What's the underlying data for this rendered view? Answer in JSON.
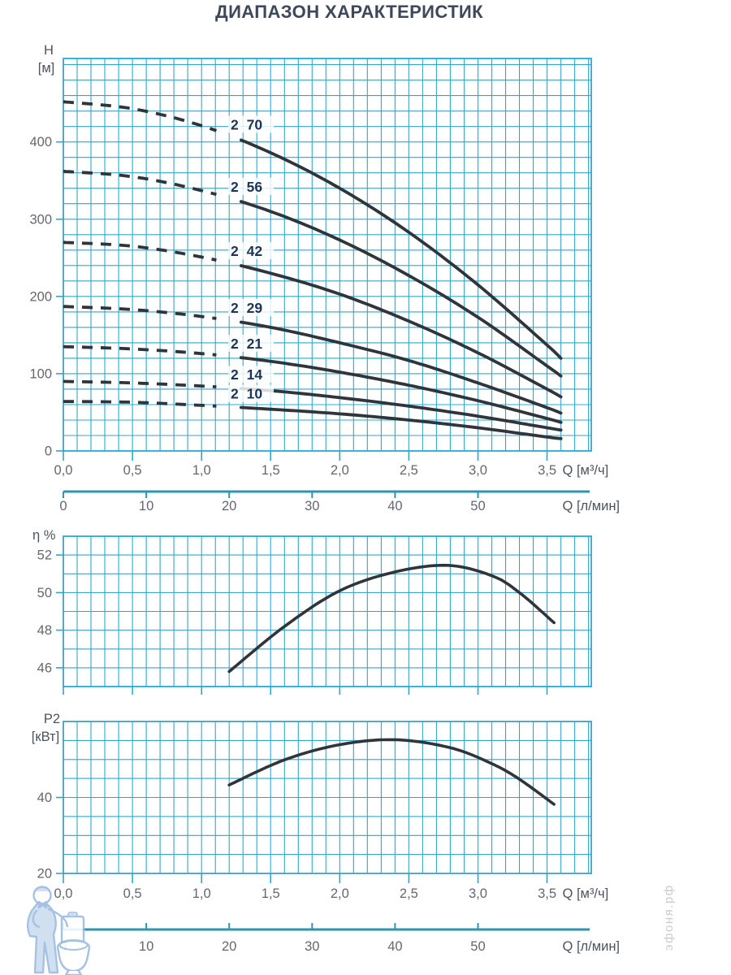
{
  "title": "ДИАПАЗОН ХАРАКТЕРИСТИК",
  "watermark": {
    "site": "эфоня.рф",
    "figure": "plumber-leaning-on-toilet"
  },
  "colors": {
    "grid": "#31a5c8",
    "axis_line": "#2e96b2",
    "curve": "#2f353a",
    "curve_label": "#1c3555",
    "tick_text": "#64676b",
    "unit_text": "#4c545c",
    "title_text": "#3d4859",
    "watermark_text": "#c6c6c6",
    "watermark_figure_stroke": "#9cbcdf",
    "watermark_figure_fill": "#cdddf0"
  },
  "chart_data": [
    {
      "type": "line",
      "name": "head-flow-chart",
      "ylabel": "H",
      "ylabel_unit": "[м]",
      "xlabel": "Q [м³/ч]",
      "xlabel_secondary": "Q [л/мин]",
      "xlim": [
        0,
        3.82
      ],
      "ylim": [
        0,
        508
      ],
      "grid": true,
      "grid_minor_x": 0.1,
      "grid_minor_y": 20,
      "x_tick_labels": [
        "0,0",
        "0,5",
        "1,0",
        "1,5",
        "2,0",
        "2,5",
        "3,0",
        "3,5"
      ],
      "x_tick_values": [
        0,
        0.5,
        1,
        1.5,
        2,
        2.5,
        3,
        3.5
      ],
      "y_tick_values": [
        0,
        100,
        200,
        300,
        400
      ],
      "x2_tick_labels": [
        "0",
        "10",
        "20",
        "30",
        "40",
        "50"
      ],
      "x2_tick_values": [
        0,
        10,
        20,
        30,
        40,
        50
      ],
      "litres_per_min_per_m3h": 16.667,
      "dashed_flow_end": 1.13,
      "solid_flow_start": 1.27,
      "series": [
        {
          "name": "2 70",
          "points": [
            [
              0,
              452
            ],
            [
              0.5,
              443
            ],
            [
              1,
              421
            ],
            [
              1.5,
              386
            ],
            [
              2,
              340
            ],
            [
              2.5,
              283
            ],
            [
              3,
              215
            ],
            [
              3.5,
              137
            ],
            [
              3.6,
              120
            ]
          ]
        },
        {
          "name": "2 56",
          "points": [
            [
              0,
              362
            ],
            [
              0.5,
              355
            ],
            [
              1,
              337
            ],
            [
              1.5,
              310
            ],
            [
              2,
              273
            ],
            [
              2.5,
              227
            ],
            [
              3,
              173
            ],
            [
              3.5,
              110
            ],
            [
              3.6,
              97
            ]
          ]
        },
        {
          "name": "2 42",
          "points": [
            [
              0,
              270
            ],
            [
              0.5,
              265
            ],
            [
              1,
              251
            ],
            [
              1.5,
              230
            ],
            [
              2,
              203
            ],
            [
              2.5,
              168
            ],
            [
              3,
              127
            ],
            [
              3.5,
              80
            ],
            [
              3.6,
              70
            ]
          ]
        },
        {
          "name": "2 29",
          "points": [
            [
              0,
              187
            ],
            [
              0.5,
              183
            ],
            [
              1,
              174
            ],
            [
              1.5,
              160
            ],
            [
              2,
              140
            ],
            [
              2.5,
              117
            ],
            [
              3,
              88
            ],
            [
              3.5,
              56
            ],
            [
              3.6,
              49
            ]
          ]
        },
        {
          "name": "2 21",
          "points": [
            [
              0,
              135
            ],
            [
              0.5,
              132
            ],
            [
              1,
              126
            ],
            [
              1.5,
              116
            ],
            [
              2,
              102
            ],
            [
              2.5,
              85
            ],
            [
              3,
              65
            ],
            [
              3.5,
              42
            ],
            [
              3.6,
              37
            ]
          ]
        },
        {
          "name": "2 14",
          "points": [
            [
              0,
              90
            ],
            [
              0.5,
              88
            ],
            [
              1,
              84
            ],
            [
              1.5,
              78
            ],
            [
              2,
              69
            ],
            [
              2.5,
              58
            ],
            [
              3,
              45
            ],
            [
              3.5,
              30
            ],
            [
              3.6,
              27
            ]
          ]
        },
        {
          "name": "2 10",
          "points": [
            [
              0,
              64
            ],
            [
              0.5,
              63
            ],
            [
              1,
              59
            ],
            [
              1.5,
              54
            ],
            [
              2,
              48
            ],
            [
              2.5,
              40
            ],
            [
              3,
              30
            ],
            [
              3.5,
              18
            ],
            [
              3.6,
              16
            ]
          ]
        }
      ]
    },
    {
      "type": "line",
      "name": "efficiency-flow-chart",
      "ylabel": "η %",
      "xlim": [
        0,
        3.82
      ],
      "ylim": [
        45,
        53
      ],
      "grid": true,
      "grid_minor_x": 0.1,
      "grid_minor_y": 1,
      "y_tick_values": [
        46,
        48,
        50,
        52
      ],
      "series": [
        {
          "name": "η",
          "points": [
            [
              1.2,
              45.8
            ],
            [
              1.6,
              48.2
            ],
            [
              2.0,
              50.1
            ],
            [
              2.4,
              51.1
            ],
            [
              2.78,
              51.45
            ],
            [
              3.1,
              50.9
            ],
            [
              3.3,
              50.0
            ],
            [
              3.55,
              48.4
            ]
          ]
        }
      ]
    },
    {
      "type": "line",
      "name": "power-flow-chart",
      "ylabel": "P2",
      "ylabel_unit": "[кВт]",
      "xlabel": "Q [м³/ч]",
      "xlabel_secondary": "Q [л/мин]",
      "xlim": [
        0,
        3.82
      ],
      "ylim": [
        20,
        60
      ],
      "grid": true,
      "grid_minor_x": 0.1,
      "grid_minor_y": 5,
      "x_tick_labels": [
        "0,0",
        "0,5",
        "1,0",
        "1,5",
        "2,0",
        "2,5",
        "3,0",
        "3,5"
      ],
      "x_tick_values": [
        0,
        0.5,
        1,
        1.5,
        2,
        2.5,
        3,
        3.5
      ],
      "y_tick_values": [
        20,
        40
      ],
      "x2_tick_labels": [
        "0",
        "10",
        "20",
        "30",
        "40",
        "50"
      ],
      "x2_tick_values": [
        0,
        10,
        20,
        30,
        40,
        50
      ],
      "series": [
        {
          "name": "P2",
          "points": [
            [
              1.2,
              43.3
            ],
            [
              1.6,
              49.9
            ],
            [
              2.0,
              53.9
            ],
            [
              2.4,
              55.2
            ],
            [
              2.8,
              53.1
            ],
            [
              3.1,
              48.9
            ],
            [
              3.3,
              44.8
            ],
            [
              3.55,
              38.2
            ]
          ]
        }
      ]
    }
  ]
}
